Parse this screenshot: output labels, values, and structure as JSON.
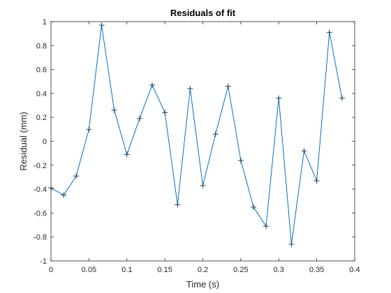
{
  "chart_data": {
    "type": "line",
    "title": "Residuals of fit",
    "xlabel": "Time (s)",
    "ylabel": "Residual (mm)",
    "xlim": [
      0,
      0.4
    ],
    "ylim": [
      -1,
      1
    ],
    "xticks": [
      0,
      0.05,
      0.1,
      0.15,
      0.2,
      0.25,
      0.3,
      0.35,
      0.4
    ],
    "xtick_labels": [
      "0",
      "0.05",
      "0.1",
      "0.15",
      "0.2",
      "0.25",
      "0.3",
      "0.35",
      "0.4"
    ],
    "yticks": [
      -1,
      -0.8,
      -0.6,
      -0.4,
      -0.2,
      0,
      0.2,
      0.4,
      0.6,
      0.8,
      1
    ],
    "ytick_labels": [
      "-1",
      "-0.8",
      "-0.6",
      "-0.4",
      "-0.2",
      "0",
      "0.2",
      "0.4",
      "0.6",
      "0.8",
      "1"
    ],
    "grid": false,
    "marker": "plus",
    "line_color": "#0072BD",
    "series": [
      {
        "x": [
          0,
          0.0167,
          0.0333,
          0.05,
          0.0667,
          0.0833,
          0.1,
          0.1167,
          0.1333,
          0.15,
          0.1667,
          0.1833,
          0.2,
          0.2167,
          0.2333,
          0.25,
          0.2667,
          0.2833,
          0.3,
          0.3167,
          0.3333,
          0.35,
          0.3667,
          0.3833
        ],
        "y": [
          -0.39,
          -0.45,
          -0.29,
          0.1,
          0.97,
          0.26,
          -0.11,
          0.19,
          0.47,
          0.24,
          -0.53,
          0.44,
          -0.37,
          0.06,
          0.46,
          -0.16,
          -0.55,
          -0.71,
          0.36,
          -0.86,
          -0.08,
          -0.33,
          0.91,
          0.36
        ]
      }
    ]
  }
}
